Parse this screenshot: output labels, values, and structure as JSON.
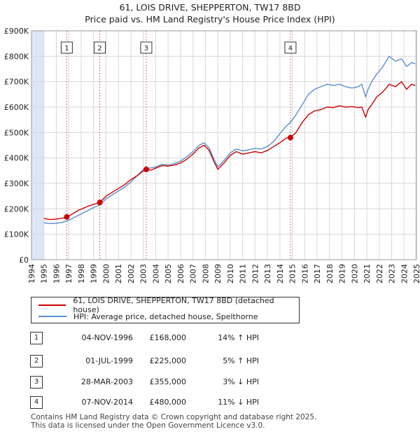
{
  "title_line1": "61, LOIS DRIVE, SHEPPERTON, TW17 8BD",
  "title_line2": "Price paid vs. HM Land Registry's House Price Index (HPI)",
  "colors": {
    "property": "#cc0000",
    "hpi": "#5b8fd0",
    "shade": "#dce6f5",
    "marker_line": "#e36f6f"
  },
  "chart_data": {
    "type": "line",
    "xlim": [
      1994.0,
      2025.0
    ],
    "ylim": [
      0,
      900000
    ],
    "y_ticks": [
      0,
      100000,
      200000,
      300000,
      400000,
      500000,
      600000,
      700000,
      800000,
      900000
    ],
    "y_tick_labels": [
      "£0",
      "£100K",
      "£200K",
      "£300K",
      "£400K",
      "£500K",
      "£600K",
      "£700K",
      "£800K",
      "£900K"
    ],
    "x_ticks": [
      1994,
      1995,
      1996,
      1997,
      1998,
      1999,
      2000,
      2001,
      2002,
      2003,
      2004,
      2005,
      2006,
      2007,
      2008,
      2009,
      2010,
      2011,
      2012,
      2013,
      2014,
      2015,
      2016,
      2017,
      2018,
      2019,
      2020,
      2021,
      2022,
      2023,
      2024,
      2025
    ],
    "x_tick_labels": [
      "1994",
      "1995",
      "1996",
      "1997",
      "1998",
      "1999",
      "2000",
      "2001",
      "2002",
      "2003",
      "2004",
      "2005",
      "2006",
      "2007",
      "2008",
      "2009",
      "2010",
      "2011",
      "2012",
      "2013",
      "2014",
      "2015",
      "2016",
      "2017",
      "2018",
      "2019",
      "2020",
      "2021",
      "2022",
      "2023",
      "2024",
      "2025"
    ],
    "grid": true,
    "shaded_ranges": [
      [
        1994.0,
        1995.0
      ],
      [
        2024.9,
        2025.0
      ]
    ],
    "series": [
      {
        "name": "61, LOIS DRIVE, SHEPPERTON, TW17 8BD (detached house)",
        "color": "#cc0000",
        "points": [
          [
            1995.0,
            162000
          ],
          [
            1995.5,
            158000
          ],
          [
            1996.0,
            160000
          ],
          [
            1996.5,
            163000
          ],
          [
            1996.84,
            168000
          ],
          [
            1997.3,
            180000
          ],
          [
            1997.8,
            195000
          ],
          [
            1998.3,
            205000
          ],
          [
            1998.8,
            215000
          ],
          [
            1999.2,
            220000
          ],
          [
            1999.5,
            225000
          ],
          [
            2000.0,
            250000
          ],
          [
            2000.5,
            265000
          ],
          [
            2001.0,
            280000
          ],
          [
            2001.5,
            295000
          ],
          [
            2002.0,
            315000
          ],
          [
            2002.5,
            330000
          ],
          [
            2002.9,
            345000
          ],
          [
            2003.24,
            355000
          ],
          [
            2003.6,
            352000
          ],
          [
            2004.0,
            360000
          ],
          [
            2004.5,
            370000
          ],
          [
            2005.0,
            368000
          ],
          [
            2005.5,
            372000
          ],
          [
            2006.0,
            380000
          ],
          [
            2006.5,
            395000
          ],
          [
            2007.0,
            415000
          ],
          [
            2007.5,
            440000
          ],
          [
            2007.9,
            450000
          ],
          [
            2008.3,
            430000
          ],
          [
            2008.7,
            385000
          ],
          [
            2009.0,
            355000
          ],
          [
            2009.5,
            380000
          ],
          [
            2010.0,
            410000
          ],
          [
            2010.5,
            425000
          ],
          [
            2011.0,
            415000
          ],
          [
            2011.5,
            420000
          ],
          [
            2012.0,
            425000
          ],
          [
            2012.5,
            420000
          ],
          [
            2013.0,
            430000
          ],
          [
            2013.5,
            445000
          ],
          [
            2014.0,
            460000
          ],
          [
            2014.5,
            478000
          ],
          [
            2014.85,
            480000
          ],
          [
            2015.3,
            500000
          ],
          [
            2015.8,
            540000
          ],
          [
            2016.3,
            570000
          ],
          [
            2016.8,
            585000
          ],
          [
            2017.3,
            590000
          ],
          [
            2017.8,
            600000
          ],
          [
            2018.3,
            598000
          ],
          [
            2018.8,
            605000
          ],
          [
            2019.3,
            600000
          ],
          [
            2019.8,
            602000
          ],
          [
            2020.3,
            598000
          ],
          [
            2020.6,
            600000
          ],
          [
            2020.9,
            560000
          ],
          [
            2021.1,
            590000
          ],
          [
            2021.4,
            610000
          ],
          [
            2021.8,
            640000
          ],
          [
            2022.3,
            660000
          ],
          [
            2022.8,
            690000
          ],
          [
            2023.3,
            680000
          ],
          [
            2023.8,
            700000
          ],
          [
            2024.2,
            670000
          ],
          [
            2024.6,
            690000
          ],
          [
            2024.9,
            685000
          ]
        ]
      },
      {
        "name": "HPI: Average price, detached house, Spelthorne",
        "color": "#5b8fd0",
        "points": [
          [
            1995.0,
            145000
          ],
          [
            1995.5,
            142000
          ],
          [
            1996.0,
            143000
          ],
          [
            1996.5,
            147000
          ],
          [
            1997.0,
            155000
          ],
          [
            1997.5,
            168000
          ],
          [
            1998.0,
            180000
          ],
          [
            1998.5,
            192000
          ],
          [
            1999.0,
            205000
          ],
          [
            1999.5,
            215000
          ],
          [
            2000.0,
            240000
          ],
          [
            2000.5,
            255000
          ],
          [
            2001.0,
            270000
          ],
          [
            2001.5,
            285000
          ],
          [
            2002.0,
            305000
          ],
          [
            2002.5,
            330000
          ],
          [
            2003.0,
            355000
          ],
          [
            2003.5,
            360000
          ],
          [
            2004.0,
            365000
          ],
          [
            2004.5,
            375000
          ],
          [
            2005.0,
            372000
          ],
          [
            2005.5,
            378000
          ],
          [
            2006.0,
            388000
          ],
          [
            2006.5,
            405000
          ],
          [
            2007.0,
            425000
          ],
          [
            2007.5,
            450000
          ],
          [
            2007.9,
            460000
          ],
          [
            2008.3,
            440000
          ],
          [
            2008.7,
            395000
          ],
          [
            2009.0,
            365000
          ],
          [
            2009.5,
            390000
          ],
          [
            2010.0,
            420000
          ],
          [
            2010.5,
            435000
          ],
          [
            2011.0,
            428000
          ],
          [
            2011.5,
            432000
          ],
          [
            2012.0,
            438000
          ],
          [
            2012.5,
            435000
          ],
          [
            2013.0,
            445000
          ],
          [
            2013.5,
            465000
          ],
          [
            2014.0,
            495000
          ],
          [
            2014.5,
            525000
          ],
          [
            2014.85,
            540000
          ],
          [
            2015.3,
            570000
          ],
          [
            2015.8,
            610000
          ],
          [
            2016.3,
            650000
          ],
          [
            2016.8,
            670000
          ],
          [
            2017.3,
            680000
          ],
          [
            2017.8,
            690000
          ],
          [
            2018.3,
            685000
          ],
          [
            2018.8,
            690000
          ],
          [
            2019.3,
            680000
          ],
          [
            2019.8,
            675000
          ],
          [
            2020.3,
            680000
          ],
          [
            2020.6,
            690000
          ],
          [
            2020.9,
            640000
          ],
          [
            2021.1,
            670000
          ],
          [
            2021.4,
            700000
          ],
          [
            2021.8,
            730000
          ],
          [
            2022.3,
            760000
          ],
          [
            2022.8,
            800000
          ],
          [
            2023.3,
            780000
          ],
          [
            2023.8,
            790000
          ],
          [
            2024.2,
            760000
          ],
          [
            2024.6,
            775000
          ],
          [
            2024.9,
            770000
          ]
        ]
      }
    ],
    "sale_markers": [
      {
        "label": "1",
        "x": 1996.84,
        "y": 168000
      },
      {
        "label": "2",
        "x": 1999.5,
        "y": 225000
      },
      {
        "label": "3",
        "x": 2003.24,
        "y": 355000
      },
      {
        "label": "4",
        "x": 2014.85,
        "y": 480000
      }
    ]
  },
  "legend": {
    "property": "61, LOIS DRIVE, SHEPPERTON, TW17 8BD (detached house)",
    "hpi": "HPI: Average price, detached house, Spelthorne"
  },
  "sales": [
    {
      "num": "1",
      "date": "04-NOV-1996",
      "price": "£168,000",
      "hpi": "14% ↑ HPI"
    },
    {
      "num": "2",
      "date": "01-JUL-1999",
      "price": "£225,000",
      "hpi": "5% ↑ HPI"
    },
    {
      "num": "3",
      "date": "28-MAR-2003",
      "price": "£355,000",
      "hpi": "3% ↓ HPI"
    },
    {
      "num": "4",
      "date": "07-NOV-2014",
      "price": "£480,000",
      "hpi": "11% ↓ HPI"
    }
  ],
  "footer_line1": "Contains HM Land Registry data © Crown copyright and database right 2025.",
  "footer_line2": "This data is licensed under the Open Government Licence v3.0."
}
